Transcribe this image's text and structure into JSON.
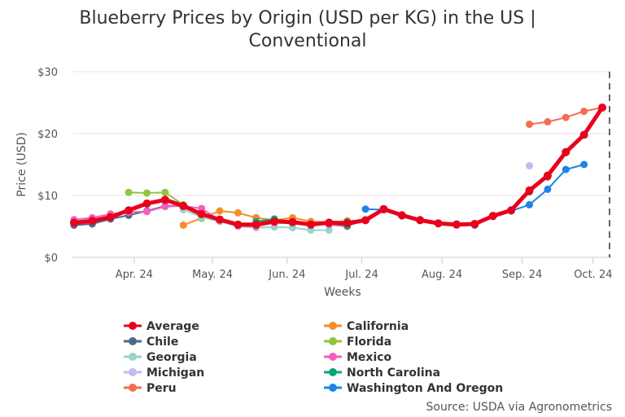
{
  "chart_data": {
    "type": "line",
    "title_line1": "Blueberry Prices by Origin (USD per KG) in the US |",
    "title_line2": "Conventional",
    "xlabel": "Weeks",
    "ylabel": "Price (USD)",
    "y_ticks": [
      "$0",
      "$10",
      "$20",
      "$30"
    ],
    "ylim": [
      0,
      30
    ],
    "x_ticks": [
      "Apr. 24",
      "May. 24",
      "Jun. 24",
      "Jul. 24",
      "Aug. 24",
      "Sep. 24",
      "Oct. 24"
    ],
    "x_tick_weeks": [
      3.3,
      7.6,
      11.7,
      15.8,
      20.2,
      24.6,
      28.5
    ],
    "xlim": [
      0,
      29.4
    ],
    "grid": "horizontal",
    "legend_position": "bottom",
    "source": "Source: USDA via Agronometrics",
    "series": [
      {
        "name": "Average",
        "color": "#e8001c",
        "x": [
          0,
          1,
          2,
          3,
          4,
          5,
          6,
          7,
          8,
          9,
          10,
          11,
          12,
          13,
          14,
          15,
          16,
          17,
          18,
          19,
          20,
          21,
          22,
          23,
          24,
          25,
          26,
          27,
          28,
          29
        ],
        "y": [
          5.6,
          5.9,
          6.5,
          7.6,
          8.7,
          9.3,
          8.3,
          7.0,
          6.1,
          5.3,
          5.3,
          5.8,
          5.7,
          5.3,
          5.6,
          5.5,
          6.0,
          7.8,
          6.8,
          6.0,
          5.5,
          5.3,
          5.4,
          6.7,
          7.6,
          10.8,
          13.2,
          17.0,
          19.8,
          24.2
        ]
      },
      {
        "name": "California",
        "color": "#f58d29",
        "x": [
          6,
          8,
          9,
          10,
          11,
          12,
          13,
          14,
          15,
          16
        ],
        "y": [
          5.2,
          7.5,
          7.2,
          6.4,
          6.0,
          6.4,
          5.8,
          5.7,
          5.9,
          6.0
        ]
      },
      {
        "name": "Chile",
        "color": "#4c6b8a",
        "x": [
          0,
          1,
          2,
          3,
          4,
          5,
          6,
          7,
          8,
          9,
          10,
          11,
          12,
          13,
          14,
          15,
          16,
          17,
          18,
          19,
          20,
          21,
          22,
          23,
          24,
          25,
          26
        ],
        "y": [
          5.2,
          5.4,
          6.2,
          6.8,
          7.5,
          8.3,
          8.3,
          6.9,
          6.1,
          5.2,
          5.0,
          5.8,
          5.5,
          5.2,
          5.5,
          5.7,
          6.0,
          7.7,
          6.8,
          6.0,
          5.5,
          5.4,
          5.3,
          6.6,
          7.5,
          10.6,
          13.0
        ]
      },
      {
        "name": "Florida",
        "color": "#8ec641",
        "x": [
          3,
          4,
          5,
          6,
          7
        ],
        "y": [
          10.5,
          10.4,
          10.5,
          8.5,
          6.3
        ]
      },
      {
        "name": "Georgia",
        "color": "#9ad3cb",
        "x": [
          6,
          7,
          8,
          9,
          10,
          11,
          12,
          13,
          14
        ],
        "y": [
          7.7,
          6.5,
          5.8,
          5.0,
          4.8,
          4.9,
          4.8,
          4.4,
          4.4
        ]
      },
      {
        "name": "Mexico",
        "color": "#f35fbf",
        "x": [
          0,
          1,
          2,
          3,
          4,
          5,
          6,
          7,
          8,
          9,
          10,
          11,
          12,
          13,
          14,
          15
        ],
        "y": [
          6.1,
          6.4,
          7.0,
          7.3,
          7.4,
          8.2,
          8.3,
          7.9,
          6.0,
          5.1,
          5.0,
          5.6,
          5.8,
          5.4,
          5.3,
          5.0
        ]
      },
      {
        "name": "Michigan",
        "color": "#c8b8f2",
        "x": [
          25
        ],
        "y": [
          14.8
        ]
      },
      {
        "name": "North Carolina",
        "color": "#0aa679",
        "x": [
          10,
          11,
          12,
          13,
          14,
          15,
          16
        ],
        "y": [
          5.8,
          6.2,
          5.7,
          5.2,
          5.5,
          5.1,
          6.0
        ]
      },
      {
        "name": "Peru",
        "color": "#f26f55",
        "x": [
          25,
          26,
          27,
          28,
          29
        ],
        "y": [
          21.5,
          21.9,
          22.6,
          23.6,
          24.2
        ]
      },
      {
        "name": "Washington And Oregon",
        "color": "#1e84e8",
        "x": [
          16,
          17,
          18,
          19,
          20,
          21,
          22,
          23,
          24,
          25,
          26,
          27,
          28
        ],
        "y": [
          7.8,
          7.7,
          6.7,
          6.1,
          5.5,
          5.3,
          5.2,
          6.7,
          7.5,
          8.5,
          11.0,
          14.2,
          15.0
        ]
      }
    ],
    "legend_left": [
      "Average",
      "Chile",
      "Georgia",
      "Michigan",
      "Peru"
    ],
    "legend_right": [
      "California",
      "Florida",
      "Mexico",
      "North Carolina",
      "Washington And Oregon"
    ]
  }
}
